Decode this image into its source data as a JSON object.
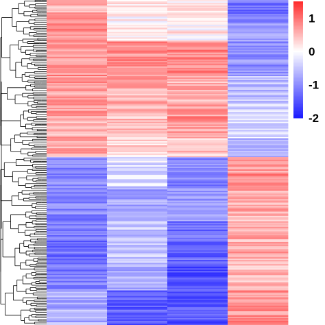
{
  "chart_data": {
    "type": "heatmap",
    "title": "",
    "xlabel": "",
    "ylabel": "",
    "dendrogram": "rows",
    "n_columns": 4,
    "n_rows": 470,
    "row_clusters": [
      {
        "rows": [
          0,
          227
        ],
        "segments": [
          {
            "rows": [
              0,
              20
            ],
            "columns": [
              0.55,
              0.15,
              0.1,
              -1.3
            ]
          },
          {
            "rows": [
              20,
              60
            ],
            "columns": [
              0.8,
              0.05,
              0.1,
              -0.9
            ]
          },
          {
            "rows": [
              60,
              110
            ],
            "columns": [
              0.75,
              0.85,
              0.8,
              -1.0
            ]
          },
          {
            "rows": [
              110,
              150
            ],
            "columns": [
              0.7,
              0.55,
              0.6,
              -0.6
            ]
          },
          {
            "rows": [
              150,
              200
            ],
            "columns": [
              0.6,
              0.45,
              0.75,
              -0.3
            ]
          },
          {
            "rows": [
              200,
              227
            ],
            "columns": [
              0.55,
              0.35,
              0.4,
              -0.8
            ]
          }
        ]
      },
      {
        "rows": [
          227,
          470
        ],
        "segments": [
          {
            "rows": [
              227,
              270
            ],
            "columns": [
              -1.0,
              -0.25,
              -1.1,
              0.75
            ]
          },
          {
            "rows": [
              270,
              320
            ],
            "columns": [
              -1.1,
              -0.8,
              -0.9,
              0.55
            ]
          },
          {
            "rows": [
              320,
              380
            ],
            "columns": [
              -1.2,
              -0.5,
              -1.3,
              0.6
            ]
          },
          {
            "rows": [
              380,
              420
            ],
            "columns": [
              -1.1,
              -0.7,
              -1.5,
              0.55
            ]
          },
          {
            "rows": [
              420,
              470
            ],
            "columns": [
              -0.7,
              -1.4,
              -1.5,
              0.75
            ]
          }
        ]
      }
    ],
    "colorbar": {
      "min": -2,
      "max": 1.5,
      "colors": {
        "low": "#1a1aff",
        "mid": "#ffffff",
        "high": "#ff2a2a"
      },
      "ticks": [
        {
          "value": 1,
          "label": "1"
        },
        {
          "value": 0,
          "label": "0"
        },
        {
          "value": -1,
          "label": "-1"
        },
        {
          "value": -2,
          "label": "-2"
        }
      ]
    }
  }
}
